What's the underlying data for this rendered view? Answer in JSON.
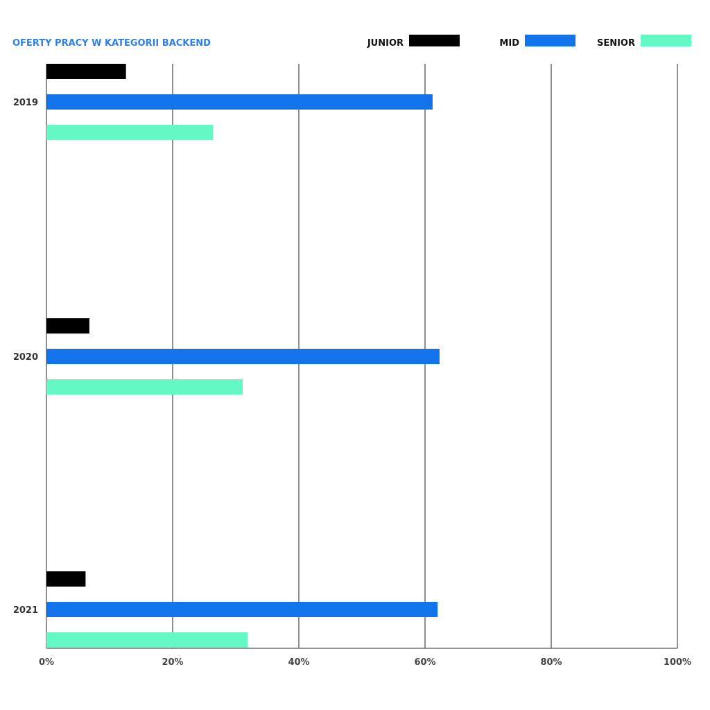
{
  "chart_data": {
    "type": "bar",
    "orientation": "horizontal",
    "title": "OFERTY PRACY W KATEGORII BACKEND",
    "categories": [
      "2019",
      "2020",
      "2021"
    ],
    "series": [
      {
        "name": "JUNIOR",
        "color": "#000000",
        "values": [
          12.6,
          6.8,
          6.2
        ]
      },
      {
        "name": "MID",
        "color": "#1273EB",
        "values": [
          61.2,
          62.3,
          62.0
        ]
      },
      {
        "name": "SENIOR",
        "color": "#64F9C4",
        "values": [
          26.4,
          31.1,
          31.9
        ]
      }
    ],
    "xlim": [
      0,
      100
    ],
    "xticks": [
      "0%",
      "20%",
      "40%",
      "60%",
      "80%",
      "100%"
    ],
    "grid": true,
    "legend_position": "top-right"
  },
  "colors": {
    "title": "#2F7FEA",
    "grid": "#555555"
  }
}
